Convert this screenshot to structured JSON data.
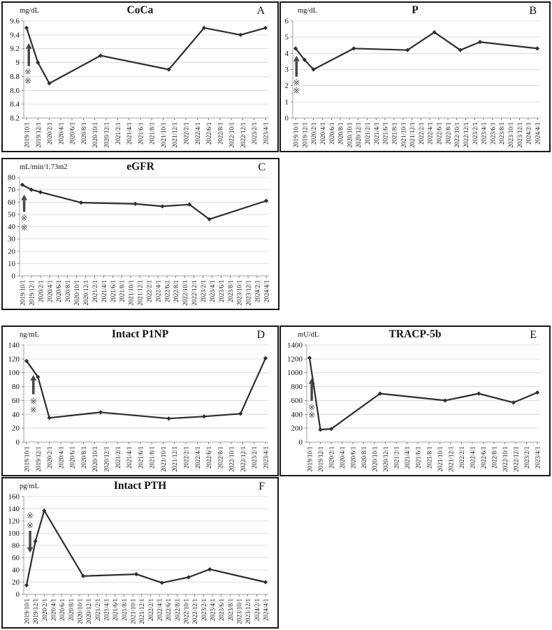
{
  "figure": {
    "background": "#ffffff",
    "colors": {
      "line": "#2d2d2d",
      "grid": "#dcdcdc",
      "axis": "#a0a0a0",
      "tick": "#7f7f7f",
      "text": "#111111",
      "annotation": "#474747",
      "panel_border": "#161616"
    }
  },
  "chart_data": [
    {
      "panel": "A",
      "type": "line",
      "title": "CoCa",
      "unit": "mg/dL",
      "ylim": [
        8.2,
        9.6
      ],
      "ystep": 0.2,
      "y_tick_labels": [
        "8.2",
        "8.4",
        "8.6",
        "8.8",
        "9",
        "9.2",
        "9.4",
        "9.6"
      ],
      "grid": "horizontal",
      "legend": "none",
      "categories": [
        "2019/10/1",
        "2019/12/1",
        "2020/2/1",
        "2020/4/1",
        "2020/6/1",
        "2020/8/1",
        "2020/10/1",
        "2020/12/1",
        "2021/2/1",
        "2021/4/1",
        "2021/6/1",
        "2021/8/1",
        "2021/10/1",
        "2021/12/1",
        "2022/2/1",
        "2022/4/1",
        "2022/6/1",
        "2022/8/1",
        "2022/10/1",
        "2022/12/1",
        "2023/2/1",
        "2023/4/1"
      ],
      "points": [
        [
          0,
          9.5
        ],
        [
          1,
          9.0
        ],
        [
          2,
          8.7
        ],
        [
          6.5,
          9.1
        ],
        [
          12.5,
          8.9
        ],
        [
          15.6,
          9.5
        ],
        [
          18.8,
          9.4
        ],
        [
          21,
          9.5
        ]
      ],
      "annotations": {
        "arrow": {
          "dir": "up",
          "i": 0.2,
          "from": 8.95,
          "to": 9.28
        },
        "marks": [
          {
            "i": 0.12,
            "v": 8.87,
            "glyph": "※"
          },
          {
            "i": 0.12,
            "v": 8.74,
            "glyph": "※"
          }
        ]
      }
    },
    {
      "panel": "B",
      "type": "line",
      "title": "P",
      "unit": "mg/dL",
      "ylim": [
        0,
        6
      ],
      "ystep": 1,
      "y_tick_labels": [
        "0",
        "1",
        "2",
        "3",
        "4",
        "5",
        "6"
      ],
      "grid": "horizontal",
      "legend": "none",
      "categories": [
        "2019/10/1",
        "2019/12/1",
        "2020/2/1",
        "2020/4/1",
        "2020/6/1",
        "2020/8/1",
        "2020/10/1",
        "2020/12/1",
        "2021/2/1",
        "2021/4/1",
        "2021/6/1",
        "2021/8/1",
        "2021/10/1",
        "2021/12/1",
        "2022/2/1",
        "2022/4/1",
        "2022/6/1",
        "2022/8/1",
        "2022/10/1",
        "2022/12/1",
        "2023/2/1",
        "2023/4/1",
        "2023/6/1",
        "2023/8/1",
        "2023/10/1",
        "2023/12/1",
        "2024/2/1",
        "2024/4/1"
      ],
      "points": [
        [
          0,
          4.3
        ],
        [
          1,
          3.6
        ],
        [
          2,
          3.0
        ],
        [
          6.5,
          4.3
        ],
        [
          12.5,
          4.2
        ],
        [
          15.5,
          5.3
        ],
        [
          18.4,
          4.2
        ],
        [
          20.6,
          4.7
        ],
        [
          27,
          4.3
        ]
      ],
      "annotations": {
        "arrow": {
          "dir": "up",
          "i": 0.1,
          "from": 2.55,
          "to": 3.85
        },
        "marks": [
          {
            "i": 0.1,
            "v": 2.2,
            "glyph": "※"
          },
          {
            "i": 0.1,
            "v": 1.7,
            "glyph": "※"
          }
        ]
      }
    },
    {
      "panel": "C",
      "type": "line",
      "title": "eGFR",
      "unit": "mL/min/1.73m2",
      "ylim": [
        0,
        80
      ],
      "ystep": 10,
      "y_tick_labels": [
        "0",
        "10",
        "20",
        "30",
        "40",
        "50",
        "60",
        "70",
        "80"
      ],
      "grid": "horizontal",
      "legend": "none",
      "categories": [
        "2019/10/1",
        "2019/12/1",
        "2020/2/1",
        "2020/4/1",
        "2020/6/1",
        "2020/8/1",
        "2020/10/1",
        "2020/12/1",
        "2021/2/1",
        "2021/4/1",
        "2021/6/1",
        "2021/8/1",
        "2021/10/1",
        "2021/12/1",
        "2022/2/1",
        "2022/4/1",
        "2022/6/1",
        "2022/8/1",
        "2022/10/1",
        "2022/12/1",
        "2023/2/1",
        "2023/4/1",
        "2023/6/1",
        "2023/8/1",
        "2023/10/1",
        "2023/12/1",
        "2024/2/1",
        "2024/4/1"
      ],
      "points": [
        [
          0,
          74
        ],
        [
          1,
          70
        ],
        [
          2,
          68
        ],
        [
          6.5,
          59.5
        ],
        [
          12.5,
          58.5
        ],
        [
          15.5,
          56.5
        ],
        [
          18.5,
          58
        ],
        [
          20.7,
          46
        ],
        [
          27,
          61
        ]
      ],
      "annotations": {
        "arrow": {
          "dir": "up",
          "i": 0.2,
          "from": 52,
          "to": 66
        },
        "marks": [
          {
            "i": 0.2,
            "v": 47,
            "glyph": "※"
          },
          {
            "i": 0.2,
            "v": 39.5,
            "glyph": "※"
          }
        ]
      }
    },
    {
      "panel": "D",
      "type": "line",
      "title": "Intact P1NP",
      "unit": "ng/mL",
      "ylim": [
        0,
        140
      ],
      "ystep": 20,
      "y_tick_labels": [
        "0",
        "20",
        "40",
        "60",
        "80",
        "100",
        "120",
        "140"
      ],
      "grid": "horizontal",
      "legend": "none",
      "categories": [
        "2019/10/1",
        "2019/12/1",
        "2020/2/1",
        "2020/4/1",
        "2020/6/1",
        "2020/8/1",
        "2020/10/1",
        "2020/12/1",
        "2021/2/1",
        "2021/4/1",
        "2021/6/1",
        "2021/8/1",
        "2021/10/1",
        "2021/12/1",
        "2022/2/1",
        "2022/4/1",
        "2022/6/1",
        "2022/8/1",
        "2022/10/1",
        "2022/12/1",
        "2023/2/1",
        "2023/4/1"
      ],
      "points": [
        [
          0,
          117
        ],
        [
          1,
          94
        ],
        [
          2,
          35
        ],
        [
          6.5,
          43
        ],
        [
          12.5,
          34
        ],
        [
          15.6,
          37
        ],
        [
          18.8,
          41
        ],
        [
          21,
          121
        ]
      ],
      "annotations": {
        "arrow": {
          "dir": "up",
          "i": 0.6,
          "from": 69,
          "to": 97
        },
        "marks": [
          {
            "i": 0.6,
            "v": 59,
            "glyph": "※"
          },
          {
            "i": 0.6,
            "v": 47,
            "glyph": "※"
          }
        ]
      }
    },
    {
      "panel": "E",
      "type": "line",
      "title": "TRACP-5b",
      "unit": "mU/dL",
      "ylim": [
        0,
        1400
      ],
      "ystep": 200,
      "y_tick_labels": [
        "0",
        "200",
        "400",
        "600",
        "800",
        "1000",
        "1200",
        "1400"
      ],
      "grid": "horizontal",
      "legend": "none",
      "categories": [
        "2019/10/1",
        "2019/12/1",
        "2020/2/1",
        "2020/4/1",
        "2020/6/1",
        "2020/8/1",
        "2020/10/1",
        "2020/12/1",
        "2021/2/1",
        "2021/4/1",
        "2021/6/1",
        "2021/8/1",
        "2021/10/1",
        "2021/12/1",
        "2022/2/1",
        "2022/4/1",
        "2022/6/1",
        "2022/8/1",
        "2022/10/1",
        "2022/12/1",
        "2023/2/1",
        "2023/4/1"
      ],
      "points": [
        [
          0,
          1215
        ],
        [
          1,
          180
        ],
        [
          2,
          190
        ],
        [
          6.5,
          700
        ],
        [
          12.5,
          600
        ],
        [
          15.6,
          700
        ],
        [
          18.8,
          570
        ],
        [
          21,
          715
        ]
      ],
      "annotations": {
        "arrow": {
          "dir": "up",
          "i": 0.2,
          "from": 595,
          "to": 920
        },
        "marks": [
          {
            "i": 0.2,
            "v": 505,
            "glyph": "※"
          },
          {
            "i": 0.2,
            "v": 395,
            "glyph": "※"
          }
        ]
      }
    },
    {
      "panel": "F",
      "type": "line",
      "title": "Intact PTH",
      "unit": "pg/mL",
      "ylim": [
        0,
        160
      ],
      "ystep": 20,
      "y_tick_labels": [
        "0",
        "20",
        "40",
        "60",
        "80",
        "100",
        "120",
        "140",
        "160"
      ],
      "grid": "horizontal",
      "legend": "none",
      "categories": [
        "2019/10/1",
        "2019/12/1",
        "2020/2/1",
        "2020/4/1",
        "2020/6/1",
        "2020/8/1",
        "2020/10/1",
        "2020/12/1",
        "2021/2/1",
        "2021/4/1",
        "2021/6/1",
        "2021/8/1",
        "2021/10/1",
        "2021/12/1",
        "2022/2/1",
        "2022/4/1",
        "2022/6/1",
        "2022/8/1",
        "2022/10/1",
        "2022/12/1",
        "2023/2/1",
        "2023/4/1",
        "2023/6/1",
        "2023/8/1",
        "2023/10/1",
        "2023/12/1",
        "2024/2/1",
        "2024/4/1"
      ],
      "points": [
        [
          0,
          15
        ],
        [
          1,
          87
        ],
        [
          2,
          137
        ],
        [
          6.4,
          30
        ],
        [
          12.4,
          33
        ],
        [
          15.3,
          19
        ],
        [
          18.3,
          28
        ],
        [
          20.7,
          41
        ],
        [
          27,
          20
        ]
      ],
      "annotations": {
        "arrow": {
          "dir": "down",
          "i": 0.4,
          "from": 104,
          "to": 68
        },
        "marks": [
          {
            "i": 0.4,
            "v": 129,
            "glyph": "※"
          },
          {
            "i": 0.4,
            "v": 113,
            "glyph": "※"
          }
        ]
      }
    }
  ]
}
